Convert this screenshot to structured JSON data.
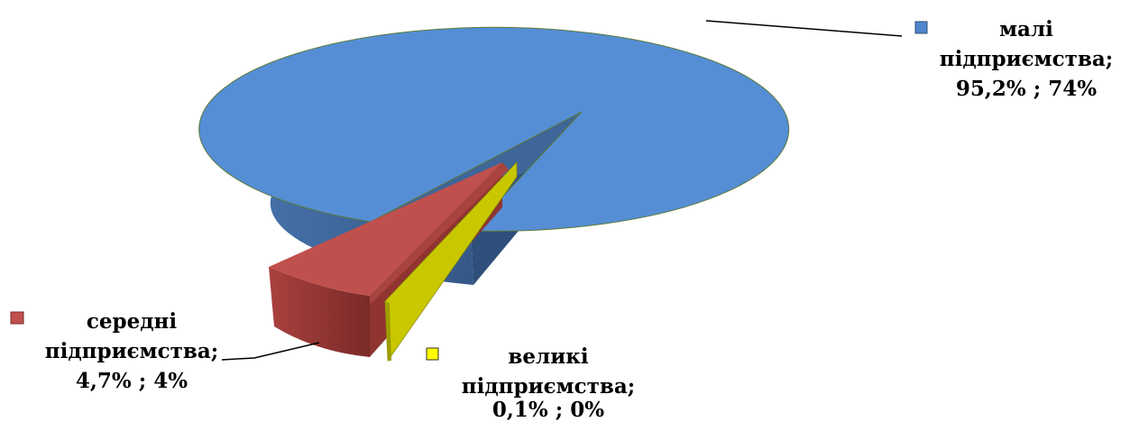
{
  "chart_data": {
    "type": "pie",
    "style": "3d-exploded",
    "legend": "inline-labels",
    "slices": [
      {
        "name": "малі підприємства",
        "line1": "малі",
        "line2": "підприємства;",
        "line3": "95,2% ; 74%",
        "value": 95.2,
        "color": "#4F86CC"
      },
      {
        "name": "середні підприємства",
        "line1": "середні",
        "line2": "підприємства;",
        "line3": "4,7% ; 4%",
        "value": 4.7,
        "color": "#C0504D"
      },
      {
        "name": "великі підприємства",
        "line1": "великі",
        "line2": "підприємства;",
        "line3": "0,1% ; 0%",
        "value": 0.1,
        "color": "#C9C800"
      }
    ]
  }
}
